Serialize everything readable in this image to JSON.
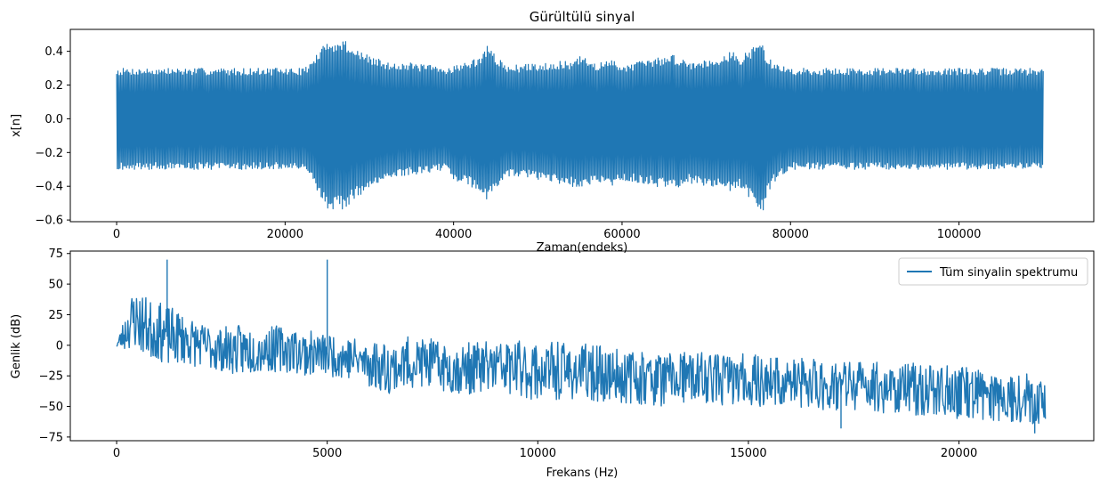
{
  "chart_data": [
    {
      "type": "line",
      "title": "Gürültülü sinyal",
      "xlabel": "Zaman(endeks)",
      "ylabel": "x[n]",
      "xlim": [
        -5500,
        116000
      ],
      "ylim": [
        -0.61,
        0.53
      ],
      "xticks": [
        0,
        20000,
        40000,
        60000,
        80000,
        100000
      ],
      "xtick_labels": [
        "0",
        "20000",
        "40000",
        "60000",
        "80000",
        "100000"
      ],
      "yticks": [
        -0.6,
        -0.4,
        -0.2,
        0.0,
        0.2,
        0.4
      ],
      "ytick_labels": [
        "−0.6",
        "−0.4",
        "−0.2",
        "0.0",
        "0.2",
        "0.4"
      ],
      "grid": false,
      "color": "#1f77b4",
      "series": [
        {
          "x": [
            0,
            10000,
            20000,
            22000,
            23000,
            24000,
            25000,
            25500,
            26000,
            27000,
            28000,
            29000,
            30000,
            31000,
            32000,
            33000,
            35000,
            37000,
            39000,
            40000,
            42000,
            43000,
            44000,
            45000,
            46000,
            48000,
            50000,
            52000,
            54000,
            55000,
            57000,
            59000,
            60000,
            62000,
            64000,
            66000,
            68000,
            70000,
            72000,
            73000,
            74000,
            75000,
            76000,
            76700,
            77000,
            78000,
            80000,
            84000,
            90000,
            100000,
            110000
          ],
          "upper": [
            0.3,
            0.3,
            0.3,
            0.3,
            0.33,
            0.4,
            0.46,
            0.49,
            0.44,
            0.48,
            0.42,
            0.4,
            0.37,
            0.36,
            0.33,
            0.34,
            0.33,
            0.32,
            0.3,
            0.32,
            0.34,
            0.37,
            0.43,
            0.38,
            0.32,
            0.32,
            0.33,
            0.34,
            0.34,
            0.37,
            0.33,
            0.35,
            0.32,
            0.34,
            0.36,
            0.38,
            0.34,
            0.35,
            0.38,
            0.4,
            0.37,
            0.4,
            0.45,
            0.46,
            0.38,
            0.33,
            0.3,
            0.3,
            0.3,
            0.3,
            0.3
          ],
          "lower": [
            -0.3,
            -0.3,
            -0.3,
            -0.3,
            -0.35,
            -0.45,
            -0.53,
            -0.56,
            -0.5,
            -0.55,
            -0.48,
            -0.45,
            -0.42,
            -0.4,
            -0.37,
            -0.35,
            -0.33,
            -0.32,
            -0.3,
            -0.36,
            -0.4,
            -0.43,
            -0.49,
            -0.42,
            -0.35,
            -0.34,
            -0.36,
            -0.38,
            -0.4,
            -0.42,
            -0.38,
            -0.4,
            -0.37,
            -0.38,
            -0.4,
            -0.42,
            -0.38,
            -0.4,
            -0.42,
            -0.44,
            -0.4,
            -0.46,
            -0.52,
            -0.56,
            -0.48,
            -0.38,
            -0.3,
            -0.3,
            -0.3,
            -0.3,
            -0.3
          ]
        }
      ]
    },
    {
      "type": "line",
      "title": "",
      "xlabel": "Frekans (Hz)",
      "ylabel": "Genlik (dB)",
      "xlim": [
        -1100,
        23200
      ],
      "ylim": [
        -78,
        77
      ],
      "xticks": [
        0,
        5000,
        10000,
        15000,
        20000
      ],
      "xtick_labels": [
        "0",
        "5000",
        "10000",
        "15000",
        "20000"
      ],
      "yticks": [
        -75,
        -50,
        -25,
        0,
        25,
        50,
        75
      ],
      "ytick_labels": [
        "−75",
        "−50",
        "−25",
        "0",
        "25",
        "50",
        "75"
      ],
      "grid": false,
      "legend": {
        "label": "Tüm sinyalin spektrumu",
        "placement": "upper right"
      },
      "color": "#1f77b4",
      "series": [
        {
          "name": "Tüm sinyalin spektrumu",
          "x": [
            0,
            200,
            400,
            600,
            800,
            1000,
            1200,
            1500,
            2000,
            2500,
            3000,
            3500,
            4000,
            4500,
            5000,
            5500,
            6000,
            6500,
            7000,
            7500,
            8000,
            8500,
            9000,
            9500,
            10000,
            11000,
            12000,
            13000,
            14000,
            15000,
            16000,
            17000,
            18000,
            19000,
            20000,
            21000,
            22050
          ],
          "upper": [
            2,
            25,
            47,
            42,
            38,
            35,
            32,
            28,
            18,
            15,
            17,
            15,
            17,
            12,
            10,
            8,
            5,
            3,
            8,
            5,
            0,
            3,
            5,
            4,
            3,
            2,
            -3,
            -5,
            -5,
            -7,
            -10,
            -10,
            -12,
            -14,
            -17,
            -20,
            -25
          ],
          "lower": [
            -2,
            -5,
            -2,
            -8,
            -12,
            -12,
            -18,
            -15,
            -18,
            -22,
            -25,
            -22,
            -22,
            -25,
            -25,
            -28,
            -35,
            -40,
            -35,
            -35,
            -40,
            -40,
            -40,
            -42,
            -45,
            -45,
            -47,
            -50,
            -48,
            -50,
            -52,
            -55,
            -55,
            -58,
            -60,
            -62,
            -65
          ],
          "spikes": [
            {
              "x": 1200,
              "value": 70
            },
            {
              "x": 5000,
              "value": 70
            },
            {
              "x": 17200,
              "value": -68
            },
            {
              "x": 21800,
              "value": -72
            }
          ]
        }
      ]
    }
  ]
}
